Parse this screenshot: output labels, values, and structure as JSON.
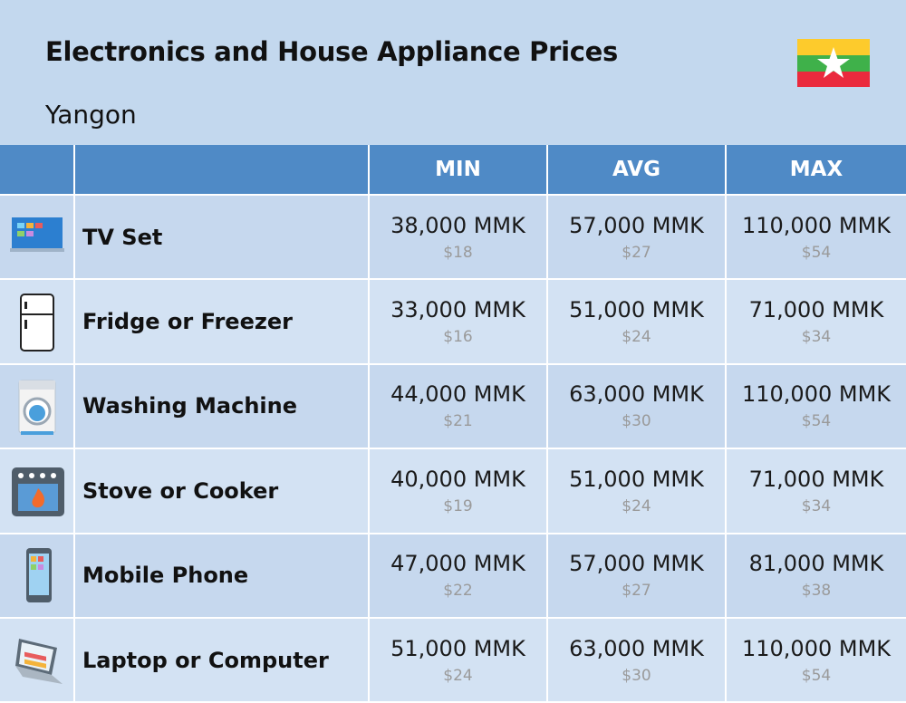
{
  "header": {
    "title": "Electronics and House Appliance Prices",
    "subtitle": "Yangon"
  },
  "table": {
    "columns": [
      "MIN",
      "AVG",
      "MAX"
    ],
    "rows": [
      {
        "name": "TV Set",
        "min": {
          "local": "38,000 MMK",
          "usd": "$18"
        },
        "avg": {
          "local": "57,000 MMK",
          "usd": "$27"
        },
        "max": {
          "local": "110,000 MMK",
          "usd": "$54"
        }
      },
      {
        "name": "Fridge or Freezer",
        "min": {
          "local": "33,000 MMK",
          "usd": "$16"
        },
        "avg": {
          "local": "51,000 MMK",
          "usd": "$24"
        },
        "max": {
          "local": "71,000 MMK",
          "usd": "$34"
        }
      },
      {
        "name": "Washing Machine",
        "min": {
          "local": "44,000 MMK",
          "usd": "$21"
        },
        "avg": {
          "local": "63,000 MMK",
          "usd": "$30"
        },
        "max": {
          "local": "110,000 MMK",
          "usd": "$54"
        }
      },
      {
        "name": "Stove or Cooker",
        "min": {
          "local": "40,000 MMK",
          "usd": "$19"
        },
        "avg": {
          "local": "51,000 MMK",
          "usd": "$24"
        },
        "max": {
          "local": "71,000 MMK",
          "usd": "$34"
        }
      },
      {
        "name": "Mobile Phone",
        "min": {
          "local": "47,000 MMK",
          "usd": "$22"
        },
        "avg": {
          "local": "57,000 MMK",
          "usd": "$27"
        },
        "max": {
          "local": "81,000 MMK",
          "usd": "$38"
        }
      },
      {
        "name": "Laptop or Computer",
        "min": {
          "local": "51,000 MMK",
          "usd": "$24"
        },
        "avg": {
          "local": "63,000 MMK",
          "usd": "$30"
        },
        "max": {
          "local": "110,000 MMK",
          "usd": "$54"
        }
      }
    ]
  }
}
